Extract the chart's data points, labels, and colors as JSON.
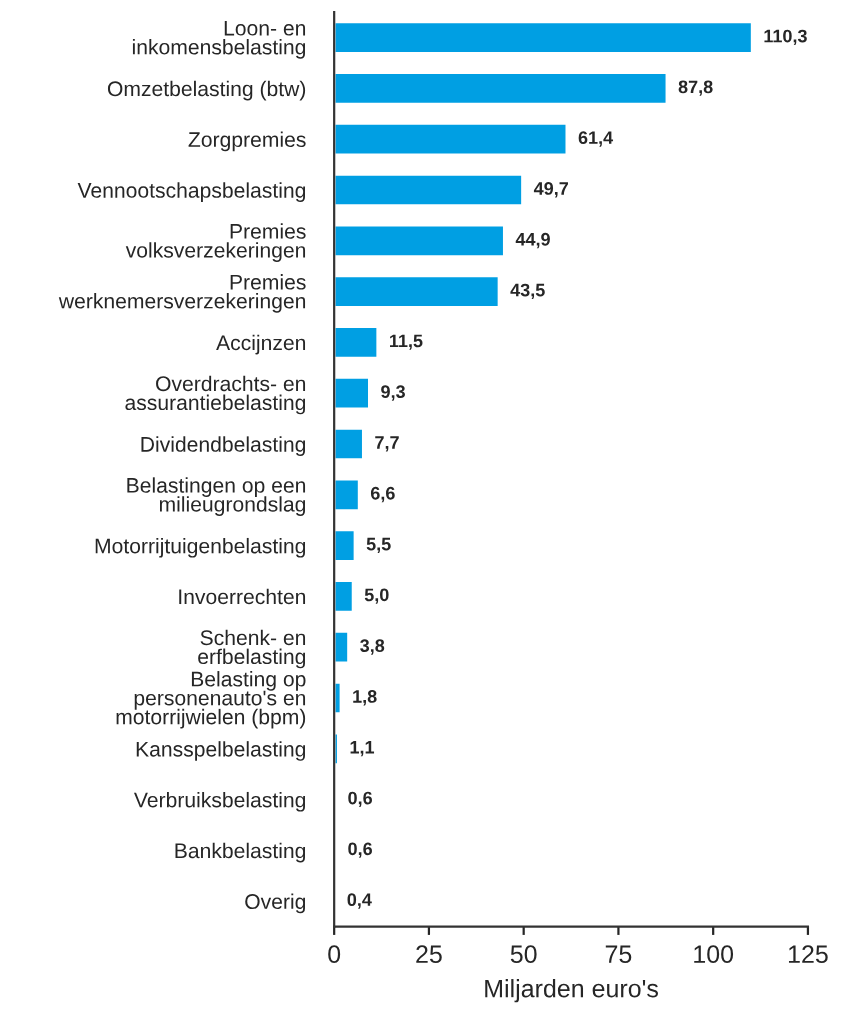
{
  "chart_data": {
    "type": "bar",
    "orientation": "horizontal",
    "xlabel": "Miljarden euro's",
    "categories": [
      "Loon- en\ninkomensbelasting",
      "Omzetbelasting (btw)",
      "Zorgpremies",
      "Vennootschapsbelasting",
      "Premies\nvolksverzekeringen",
      "Premies\nwerknemersverzekeringen",
      "Accijnzen",
      "Overdrachts- en\nassurantiebelasting",
      "Dividendbelasting",
      "Belastingen op een\nmilieugrondslag",
      "Motorrijtuigenbelasting",
      "Invoerrechten",
      "Schenk- en\nerfbelasting",
      "Belasting op\npersonenauto's en\nmotorrijwielen (bpm)",
      "Kansspelbelasting",
      "Verbruiksbelasting",
      "Bankbelasting",
      "Overig"
    ],
    "values": [
      110.3,
      87.8,
      61.4,
      49.7,
      44.9,
      43.5,
      11.5,
      9.3,
      7.7,
      6.6,
      5.5,
      5.0,
      3.8,
      1.8,
      1.1,
      0.6,
      0.6,
      0.4
    ],
    "value_labels": [
      "110,3",
      "87,8",
      "61,4",
      "49,7",
      "44,9",
      "43,5",
      "11,5",
      "9,3",
      "7,7",
      "6,6",
      "5,5",
      "5,0",
      "3,8",
      "1,8",
      "1,1",
      "0,6",
      "0,6",
      "0,4"
    ],
    "color": "#009fe3",
    "xlim": [
      0,
      125
    ],
    "xticks": [
      0,
      25,
      50,
      75,
      100,
      125
    ],
    "grid": false
  }
}
